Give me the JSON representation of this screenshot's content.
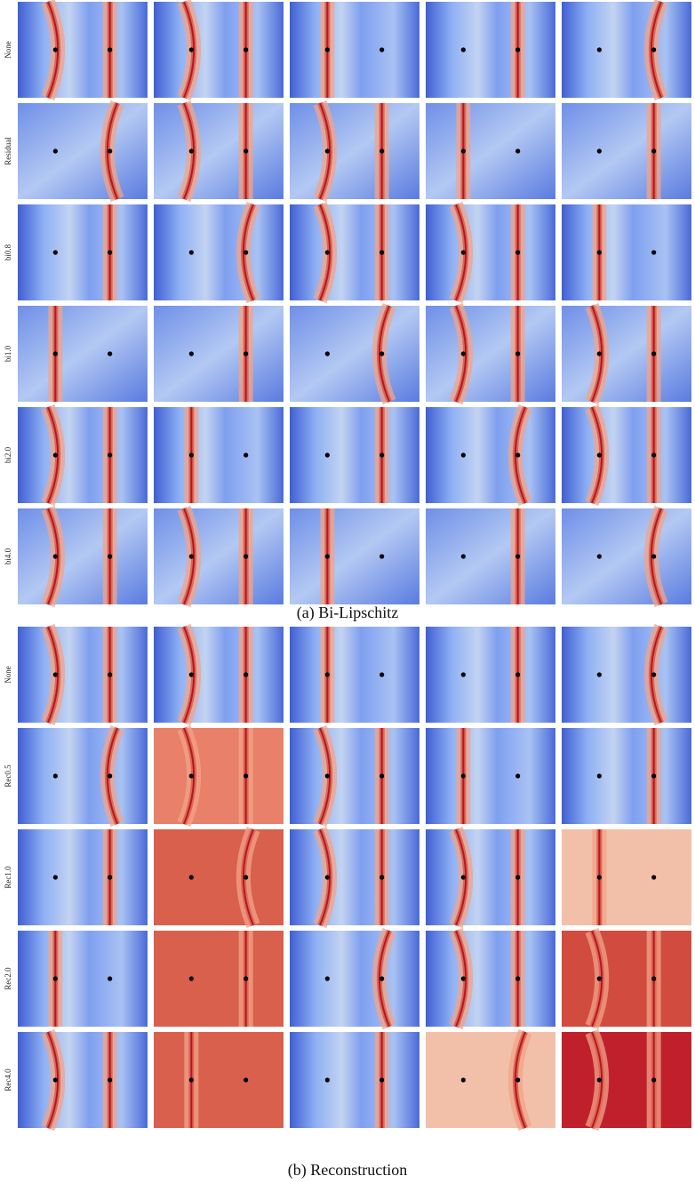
{
  "figure_a": {
    "caption": "(a) Bi-Lipschitz",
    "rows": [
      "None",
      "Residual",
      "bi0.8",
      "bi1.0",
      "bi2.0",
      "bi4.0"
    ]
  },
  "figure_b": {
    "caption": "(b) Reconstruction",
    "rows": [
      "None",
      "Rec0.5",
      "Rec1.0",
      "Rec2.0",
      "Rec4.0"
    ]
  }
}
